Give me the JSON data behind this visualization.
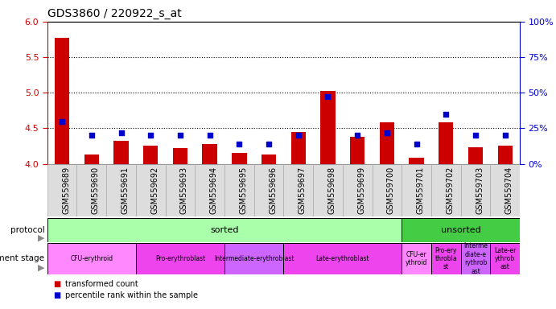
{
  "title": "GDS3860 / 220922_s_at",
  "samples": [
    "GSM559689",
    "GSM559690",
    "GSM559691",
    "GSM559692",
    "GSM559693",
    "GSM559694",
    "GSM559695",
    "GSM559696",
    "GSM559697",
    "GSM559698",
    "GSM559699",
    "GSM559700",
    "GSM559701",
    "GSM559702",
    "GSM559703",
    "GSM559704"
  ],
  "bar_values": [
    5.77,
    4.13,
    4.32,
    4.25,
    4.22,
    4.28,
    4.15,
    4.13,
    4.45,
    5.02,
    4.38,
    4.58,
    4.08,
    4.58,
    4.23,
    4.26
  ],
  "pct_values": [
    30,
    20,
    22,
    20,
    20,
    20,
    14,
    14,
    20,
    47,
    20,
    22,
    14,
    35,
    20,
    20
  ],
  "ylim": [
    4.0,
    6.0
  ],
  "yticks": [
    4.0,
    4.5,
    5.0,
    5.5,
    6.0
  ],
  "right_yticks": [
    0,
    25,
    50,
    75,
    100
  ],
  "right_ylim": [
    0,
    100
  ],
  "dotted_lines": [
    4.5,
    5.0,
    5.5
  ],
  "bar_color": "#cc0000",
  "dot_color": "#0000cc",
  "bar_width": 0.5,
  "protocol": [
    {
      "label": "sorted",
      "start": 0,
      "end": 12,
      "color": "#aaffaa"
    },
    {
      "label": "unsorted",
      "start": 12,
      "end": 16,
      "color": "#44cc44"
    }
  ],
  "dev_stage": [
    {
      "label": "CFU-erythroid",
      "start": 0,
      "end": 3,
      "color": "#ff88ff"
    },
    {
      "label": "Pro-erythroblast",
      "start": 3,
      "end": 6,
      "color": "#ee44ee"
    },
    {
      "label": "Intermediate-erythroblast",
      "start": 6,
      "end": 8,
      "color": "#cc66ff"
    },
    {
      "label": "Late-erythroblast",
      "start": 8,
      "end": 12,
      "color": "#ee44ee"
    },
    {
      "label": "CFU-er\nythroid",
      "start": 12,
      "end": 13,
      "color": "#ff88ff"
    },
    {
      "label": "Pro-ery\nthrobla\nst",
      "start": 13,
      "end": 14,
      "color": "#ee44ee"
    },
    {
      "label": "Interme\ndiate-e\nrythrob\nast",
      "start": 14,
      "end": 15,
      "color": "#cc66ff"
    },
    {
      "label": "Late-er\nythrob\nast",
      "start": 15,
      "end": 16,
      "color": "#ee44ee"
    }
  ],
  "legend_items": [
    {
      "label": "transformed count",
      "color": "#cc0000"
    },
    {
      "label": "percentile rank within the sample",
      "color": "#0000cc"
    }
  ],
  "tick_fontsize": 7,
  "title_fontsize": 10,
  "label_color_left": "#cc0000",
  "label_color_right": "#0000cc",
  "xtick_bg": "#dddddd"
}
